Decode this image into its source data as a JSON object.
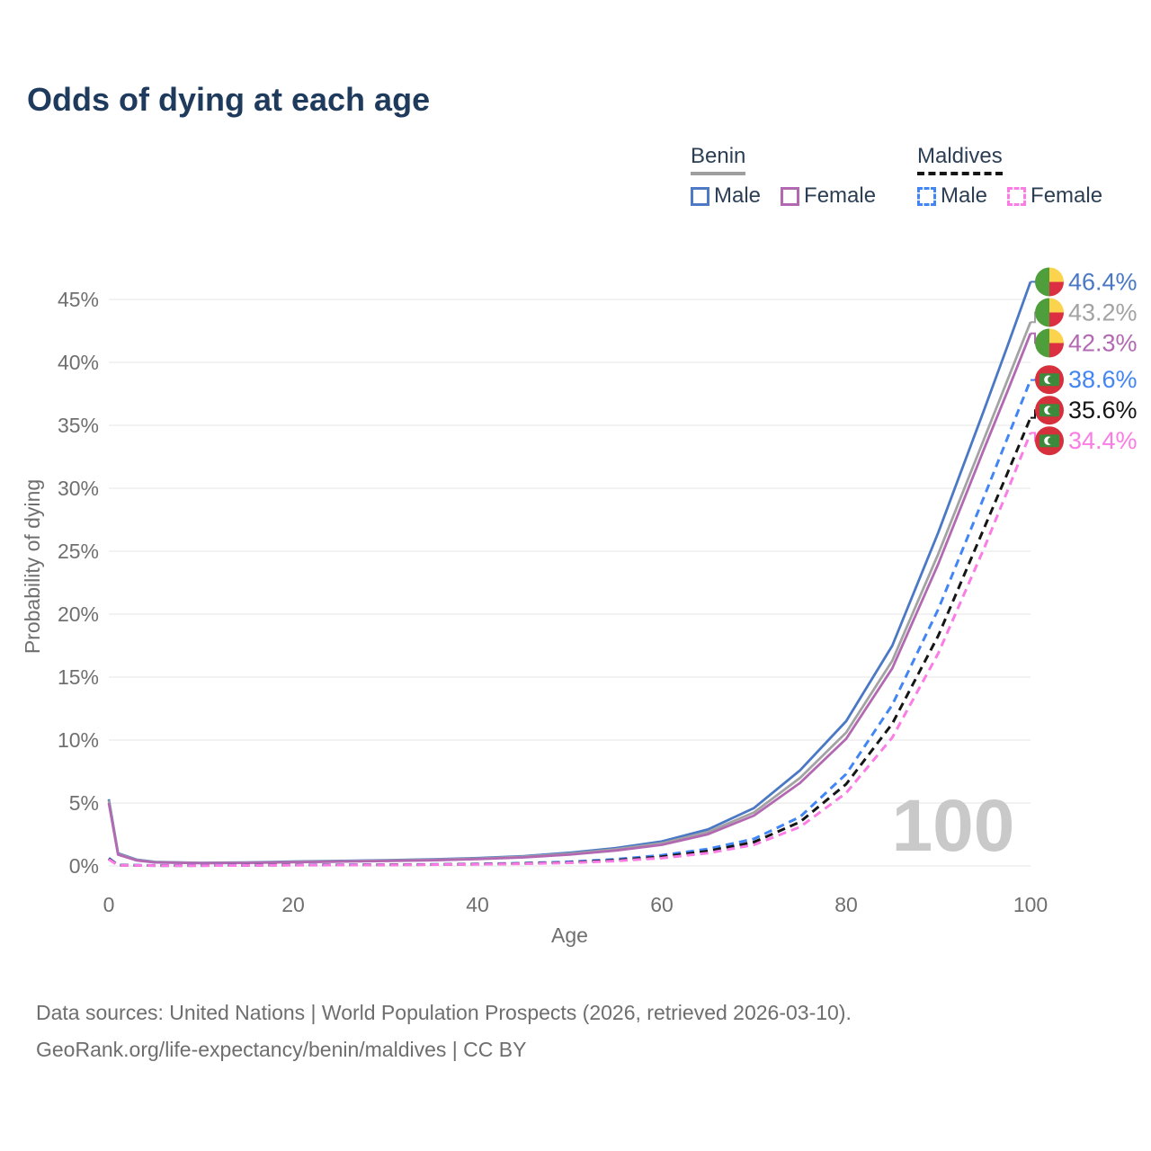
{
  "title": "Odds of dying at each age",
  "legend": {
    "groups": [
      {
        "label": "Benin",
        "underline_color": "#9e9e9e",
        "underline_style": "solid",
        "items": [
          {
            "label": "Male",
            "color": "#4e79c7",
            "dash": false
          },
          {
            "label": "Female",
            "color": "#b269b2",
            "dash": false
          }
        ]
      },
      {
        "label": "Maldives",
        "underline_color": "#151515",
        "underline_style": "dashed",
        "items": [
          {
            "label": "Male",
            "color": "#4285f4",
            "dash": true
          },
          {
            "label": "Female",
            "color": "#fb7ce4",
            "dash": true
          }
        ]
      }
    ]
  },
  "footer": {
    "line1": "Data sources: United Nations | World Population Prospects (2026, retrieved 2026-03-10).",
    "line2": "GeoRank.org/life-expectancy/benin/maldives | CC BY"
  },
  "colors": {
    "title": "#1e3a5c",
    "axis_text": "#6f6f6f",
    "gridline": "#ebebeb",
    "watermark": "#c9c9c9",
    "legend_text": "#2c3e54"
  },
  "flags": {
    "benin": {
      "green": "#4f9e3c",
      "yellow": "#fbd34c",
      "red": "#dc2f42"
    },
    "maldives": {
      "red": "#d5303c",
      "green": "#3d8a3d",
      "crescent": "#ffffff"
    }
  },
  "chart_data": {
    "type": "line",
    "title": "Odds of dying at each age",
    "xlabel": "Age",
    "ylabel": "Probability of dying",
    "xlim": [
      0,
      100
    ],
    "ylim_pct": [
      0,
      47
    ],
    "grid": true,
    "legend_position": "top-right",
    "x_ticks": [
      0,
      20,
      40,
      60,
      80,
      100
    ],
    "y_ticks": [
      {
        "v": 0,
        "label": "0%"
      },
      {
        "v": 5,
        "label": "5%"
      },
      {
        "v": 10,
        "label": "10%"
      },
      {
        "v": 15,
        "label": "15%"
      },
      {
        "v": 20,
        "label": "20%"
      },
      {
        "v": 25,
        "label": "25%"
      },
      {
        "v": 30,
        "label": "30%"
      },
      {
        "v": 35,
        "label": "35%"
      },
      {
        "v": 40,
        "label": "40%"
      },
      {
        "v": 45,
        "label": "45%"
      }
    ],
    "age_indicator": "100",
    "series": [
      {
        "name": "Benin Male",
        "slug": "benin-male",
        "country": "Benin",
        "sex": "Male",
        "color": "#4a78c5",
        "dash": "solid",
        "flag": "benin",
        "end_label": "46.4%",
        "points": [
          [
            0,
            5.3
          ],
          [
            1,
            1.0
          ],
          [
            3,
            0.5
          ],
          [
            5,
            0.32
          ],
          [
            10,
            0.24
          ],
          [
            15,
            0.28
          ],
          [
            20,
            0.34
          ],
          [
            25,
            0.4
          ],
          [
            30,
            0.46
          ],
          [
            35,
            0.52
          ],
          [
            40,
            0.62
          ],
          [
            45,
            0.78
          ],
          [
            50,
            1.05
          ],
          [
            55,
            1.42
          ],
          [
            60,
            1.95
          ],
          [
            65,
            2.9
          ],
          [
            70,
            4.6
          ],
          [
            75,
            7.6
          ],
          [
            80,
            11.5
          ],
          [
            85,
            17.5
          ],
          [
            90,
            26.5
          ],
          [
            95,
            36.3
          ],
          [
            97.5,
            41.3
          ],
          [
            100,
            46.4
          ]
        ]
      },
      {
        "name": "Benin",
        "slug": "benin-both",
        "country": "Benin",
        "sex": "Both",
        "color": "#a3a3a3",
        "dash": "solid",
        "flag": "benin",
        "end_label": "43.2%",
        "points": [
          [
            0,
            5.2
          ],
          [
            1,
            0.95
          ],
          [
            3,
            0.47
          ],
          [
            5,
            0.3
          ],
          [
            10,
            0.23
          ],
          [
            15,
            0.26
          ],
          [
            20,
            0.32
          ],
          [
            25,
            0.37
          ],
          [
            30,
            0.43
          ],
          [
            35,
            0.49
          ],
          [
            40,
            0.58
          ],
          [
            45,
            0.73
          ],
          [
            50,
            0.97
          ],
          [
            55,
            1.32
          ],
          [
            60,
            1.8
          ],
          [
            65,
            2.7
          ],
          [
            70,
            4.25
          ],
          [
            75,
            7.0
          ],
          [
            80,
            10.6
          ],
          [
            85,
            16.3
          ],
          [
            90,
            24.8
          ],
          [
            95,
            34.0
          ],
          [
            97.5,
            38.6
          ],
          [
            100,
            43.2
          ]
        ]
      },
      {
        "name": "Benin Female",
        "slug": "benin-female",
        "country": "Benin",
        "sex": "Female",
        "color": "#b269b2",
        "dash": "solid",
        "flag": "benin",
        "end_label": "42.3%",
        "points": [
          [
            0,
            5.0
          ],
          [
            1,
            0.9
          ],
          [
            3,
            0.44
          ],
          [
            5,
            0.28
          ],
          [
            10,
            0.22
          ],
          [
            15,
            0.24
          ],
          [
            20,
            0.29
          ],
          [
            25,
            0.34
          ],
          [
            30,
            0.39
          ],
          [
            35,
            0.45
          ],
          [
            40,
            0.54
          ],
          [
            45,
            0.68
          ],
          [
            50,
            0.9
          ],
          [
            55,
            1.23
          ],
          [
            60,
            1.68
          ],
          [
            65,
            2.52
          ],
          [
            70,
            4.0
          ],
          [
            75,
            6.6
          ],
          [
            80,
            10.1
          ],
          [
            85,
            15.7
          ],
          [
            90,
            24.0
          ],
          [
            95,
            33.2
          ],
          [
            97.5,
            37.7
          ],
          [
            100,
            42.3
          ]
        ]
      },
      {
        "name": "Maldives Male",
        "slug": "maldives-male",
        "country": "Maldives",
        "sex": "Male",
        "color": "#4285f4",
        "dash": "dashed",
        "flag": "maldives",
        "end_label": "38.6%",
        "points": [
          [
            0,
            0.62
          ],
          [
            1,
            0.07
          ],
          [
            5,
            0.04
          ],
          [
            10,
            0.04
          ],
          [
            15,
            0.06
          ],
          [
            20,
            0.08
          ],
          [
            25,
            0.09
          ],
          [
            30,
            0.1
          ],
          [
            35,
            0.12
          ],
          [
            40,
            0.16
          ],
          [
            45,
            0.22
          ],
          [
            50,
            0.33
          ],
          [
            55,
            0.53
          ],
          [
            60,
            0.85
          ],
          [
            65,
            1.35
          ],
          [
            70,
            2.15
          ],
          [
            75,
            3.9
          ],
          [
            80,
            7.3
          ],
          [
            85,
            12.8
          ],
          [
            90,
            20.4
          ],
          [
            95,
            29.4
          ],
          [
            97.5,
            34.0
          ],
          [
            100,
            38.6
          ]
        ]
      },
      {
        "name": "Maldives",
        "slug": "maldives-both",
        "country": "Maldives",
        "sex": "Both",
        "color": "#151515",
        "dash": "dashed",
        "flag": "maldives",
        "end_label": "35.6%",
        "points": [
          [
            0,
            0.57
          ],
          [
            1,
            0.06
          ],
          [
            5,
            0.03
          ],
          [
            10,
            0.03
          ],
          [
            15,
            0.05
          ],
          [
            20,
            0.07
          ],
          [
            25,
            0.08
          ],
          [
            30,
            0.09
          ],
          [
            35,
            0.11
          ],
          [
            40,
            0.14
          ],
          [
            45,
            0.19
          ],
          [
            50,
            0.28
          ],
          [
            55,
            0.45
          ],
          [
            60,
            0.73
          ],
          [
            65,
            1.18
          ],
          [
            70,
            1.9
          ],
          [
            75,
            3.5
          ],
          [
            80,
            6.5
          ],
          [
            85,
            11.3
          ],
          [
            90,
            18.3
          ],
          [
            95,
            26.9
          ],
          [
            97.5,
            31.2
          ],
          [
            100,
            35.6
          ]
        ]
      },
      {
        "name": "Maldives Female",
        "slug": "maldives-female",
        "country": "Maldives",
        "sex": "Female",
        "color": "#fb7ce4",
        "dash": "dashed",
        "flag": "maldives",
        "end_label": "34.4%",
        "points": [
          [
            0,
            0.52
          ],
          [
            1,
            0.05
          ],
          [
            5,
            0.03
          ],
          [
            10,
            0.03
          ],
          [
            15,
            0.04
          ],
          [
            20,
            0.06
          ],
          [
            25,
            0.07
          ],
          [
            30,
            0.08
          ],
          [
            35,
            0.1
          ],
          [
            40,
            0.13
          ],
          [
            45,
            0.17
          ],
          [
            50,
            0.25
          ],
          [
            55,
            0.39
          ],
          [
            60,
            0.63
          ],
          [
            65,
            1.02
          ],
          [
            70,
            1.68
          ],
          [
            75,
            3.1
          ],
          [
            80,
            5.8
          ],
          [
            85,
            10.2
          ],
          [
            90,
            16.9
          ],
          [
            95,
            25.3
          ],
          [
            97.5,
            29.8
          ],
          [
            100,
            34.4
          ]
        ]
      }
    ]
  }
}
